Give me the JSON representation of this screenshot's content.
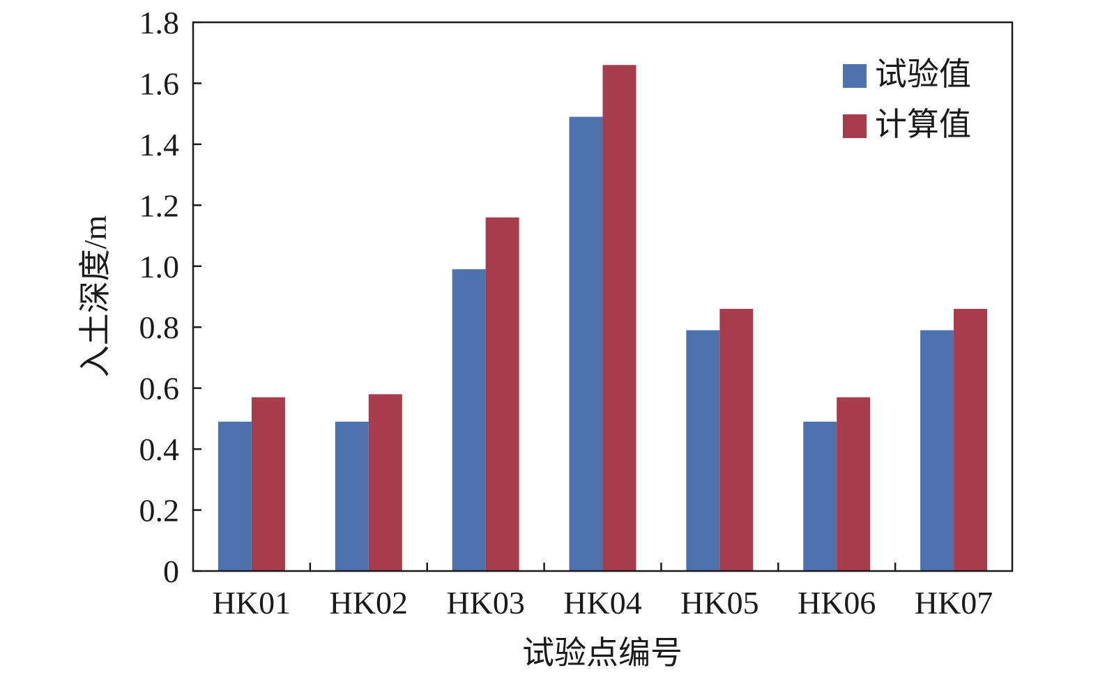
{
  "chart_data": {
    "type": "bar",
    "categories": [
      "HK01",
      "HK02",
      "HK03",
      "HK04",
      "HK05",
      "HK06",
      "HK07"
    ],
    "series": [
      {
        "name": "试验值",
        "values": [
          0.49,
          0.49,
          0.99,
          1.49,
          0.79,
          0.49,
          0.79
        ],
        "color": "#4e72ad"
      },
      {
        "name": "计算值",
        "values": [
          0.57,
          0.58,
          1.16,
          1.66,
          0.86,
          0.57,
          0.86
        ],
        "color": "#a73d4c"
      }
    ],
    "xlabel": "试验点编号",
    "ylabel": "入土深度/m",
    "ylim": [
      0,
      1.8
    ],
    "yticks": [
      "0",
      "0.2",
      "0.4",
      "0.6",
      "0.8",
      "1.0",
      "1.2",
      "1.4",
      "1.6",
      "1.8"
    ],
    "grid": false,
    "legend_position": "top-right"
  }
}
